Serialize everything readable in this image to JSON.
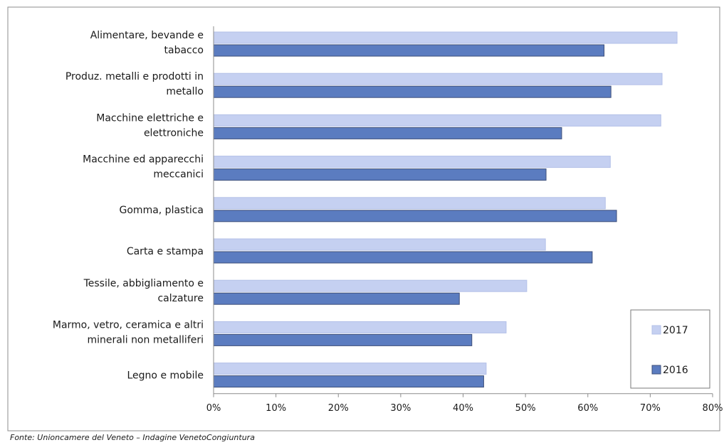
{
  "chart_data": {
    "type": "bar",
    "orientation": "horizontal",
    "categories": [
      [
        "Alimentare, bevande e",
        "tabacco"
      ],
      [
        "Produz. metalli e prodotti in",
        "metallo"
      ],
      [
        "Macchine elettriche e",
        "elettroniche"
      ],
      [
        "Macchine ed apparecchi",
        "meccanici"
      ],
      [
        "Gomma, plastica"
      ],
      [
        "Carta e stampa"
      ],
      [
        "Tessile, abbigliamento e",
        "calzature"
      ],
      [
        "Marmo, vetro, ceramica e altri",
        "minerali non metalliferi"
      ],
      [
        "Legno e mobile"
      ]
    ],
    "series": [
      {
        "name": "2017",
        "color": "#c5d0f1",
        "values": [
          74.3,
          71.9,
          71.7,
          63.6,
          62.8,
          53.2,
          50.2,
          46.9,
          43.7
        ]
      },
      {
        "name": "2016",
        "color": "#5b7cc0",
        "values": [
          62.6,
          63.7,
          55.8,
          53.3,
          64.6,
          60.7,
          39.4,
          41.4,
          43.3
        ]
      }
    ],
    "xlim": [
      0,
      80
    ],
    "xticks": [
      "0%",
      "10%",
      "20%",
      "30%",
      "40%",
      "50%",
      "60%",
      "70%",
      "80%"
    ],
    "legend_position": "bottom-right",
    "source": "Fonte: Unioncamere del Veneto – Indagine VenetoCongiuntura"
  }
}
